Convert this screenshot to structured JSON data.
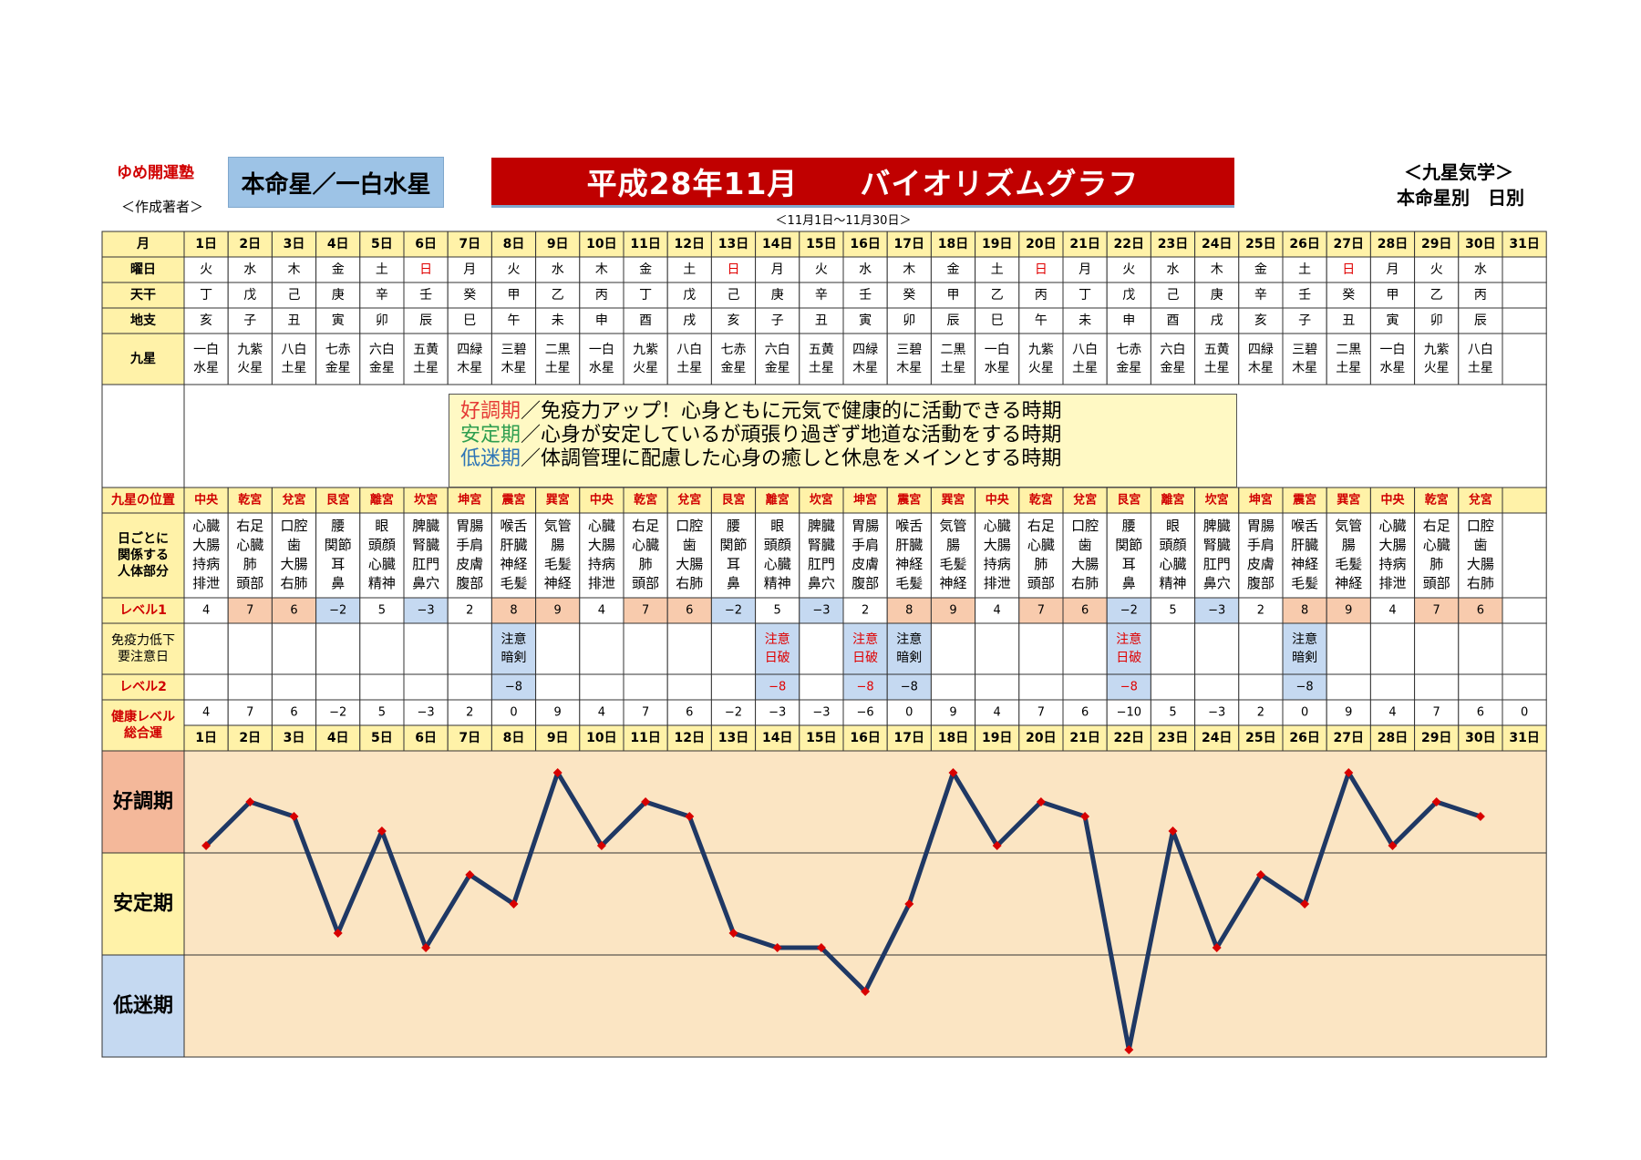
{
  "header": {
    "brand": "ゆめ開運塾",
    "author_note": "＜作成著者＞",
    "honmei": "本命星／一白水星",
    "title": "平成28年11月　　バイオリズムグラフ",
    "subtitle_right1": "＜九星気学＞",
    "subtitle_right2": "本命星別　日別",
    "period": "＜11月1日～11月30日＞"
  },
  "row_labels": {
    "month": "月",
    "weekday": "曜日",
    "stem": "天干",
    "branch": "地支",
    "kyusei": "九星",
    "position": "九星の位置",
    "body": [
      "日ごとに",
      "関係する",
      "人体部分"
    ],
    "level1": "レベル1",
    "caution": [
      "免疫力低下",
      "要注意日"
    ],
    "level2": "レベル2",
    "health": [
      "健康レベル",
      "総合運"
    ]
  },
  "legend": [
    {
      "key": "好調期",
      "text": "／免疫力アップ！心身ともに元気で健康的に活動できる時期"
    },
    {
      "key": "安定期",
      "text": "／心身が安定しているが頑張り過ぎず地道な活動をする時期"
    },
    {
      "key": "低迷期",
      "text": "／体調管理に配慮した心身の癒しと休息をメインとする時期"
    }
  ],
  "bands": [
    "好調期",
    "安定期",
    "低迷期"
  ],
  "days": [
    "1日",
    "2日",
    "3日",
    "4日",
    "5日",
    "6日",
    "7日",
    "8日",
    "9日",
    "10日",
    "11日",
    "12日",
    "13日",
    "14日",
    "15日",
    "16日",
    "17日",
    "18日",
    "19日",
    "20日",
    "21日",
    "22日",
    "23日",
    "24日",
    "25日",
    "26日",
    "27日",
    "28日",
    "29日",
    "30日",
    "31日"
  ],
  "weekdays": [
    "火",
    "水",
    "木",
    "金",
    "土",
    "日",
    "月",
    "火",
    "水",
    "木",
    "金",
    "土",
    "日",
    "月",
    "火",
    "水",
    "木",
    "金",
    "土",
    "日",
    "月",
    "火",
    "水",
    "木",
    "金",
    "土",
    "日",
    "月",
    "火",
    "水",
    ""
  ],
  "stems": [
    "丁",
    "戊",
    "己",
    "庚",
    "辛",
    "壬",
    "癸",
    "甲",
    "乙",
    "丙",
    "丁",
    "戊",
    "己",
    "庚",
    "辛",
    "壬",
    "癸",
    "甲",
    "乙",
    "丙",
    "丁",
    "戊",
    "己",
    "庚",
    "辛",
    "壬",
    "癸",
    "甲",
    "乙",
    "丙",
    ""
  ],
  "branches": [
    "亥",
    "子",
    "丑",
    "寅",
    "卯",
    "辰",
    "巳",
    "午",
    "未",
    "申",
    "酉",
    "戌",
    "亥",
    "子",
    "丑",
    "寅",
    "卯",
    "辰",
    "巳",
    "午",
    "未",
    "申",
    "酉",
    "戌",
    "亥",
    "子",
    "丑",
    "寅",
    "卯",
    "辰",
    ""
  ],
  "kyusei": [
    [
      "一白",
      "水星"
    ],
    [
      "九紫",
      "火星"
    ],
    [
      "八白",
      "土星"
    ],
    [
      "七赤",
      "金星"
    ],
    [
      "六白",
      "金星"
    ],
    [
      "五黄",
      "土星"
    ],
    [
      "四緑",
      "木星"
    ],
    [
      "三碧",
      "木星"
    ],
    [
      "二黒",
      "土星"
    ],
    [
      "一白",
      "水星"
    ],
    [
      "九紫",
      "火星"
    ],
    [
      "八白",
      "土星"
    ],
    [
      "七赤",
      "金星"
    ],
    [
      "六白",
      "金星"
    ],
    [
      "五黄",
      "土星"
    ],
    [
      "四緑",
      "木星"
    ],
    [
      "三碧",
      "木星"
    ],
    [
      "二黒",
      "土星"
    ],
    [
      "一白",
      "水星"
    ],
    [
      "九紫",
      "火星"
    ],
    [
      "八白",
      "土星"
    ],
    [
      "七赤",
      "金星"
    ],
    [
      "六白",
      "金星"
    ],
    [
      "五黄",
      "土星"
    ],
    [
      "四緑",
      "木星"
    ],
    [
      "三碧",
      "木星"
    ],
    [
      "二黒",
      "土星"
    ],
    [
      "一白",
      "水星"
    ],
    [
      "九紫",
      "火星"
    ],
    [
      "八白",
      "土星"
    ],
    [
      "",
      ""
    ]
  ],
  "positions": [
    "中央",
    "乾宮",
    "兌宮",
    "艮宮",
    "離宮",
    "坎宮",
    "坤宮",
    "震宮",
    "巽宮",
    "中央",
    "乾宮",
    "兌宮",
    "艮宮",
    "離宮",
    "坎宮",
    "坤宮",
    "震宮",
    "巽宮",
    "中央",
    "乾宮",
    "兌宮",
    "艮宮",
    "離宮",
    "坎宮",
    "坤宮",
    "震宮",
    "巽宮",
    "中央",
    "乾宮",
    "兌宮",
    ""
  ],
  "body_parts": [
    [
      "心臓",
      "大腸",
      "持病",
      "排泄"
    ],
    [
      "右足",
      "心臓",
      "肺",
      "頭部"
    ],
    [
      "口腔",
      "歯",
      "大腸",
      "右肺"
    ],
    [
      "腰",
      "関節",
      "耳",
      "鼻"
    ],
    [
      "眼",
      "頭顔",
      "心臓",
      "精神"
    ],
    [
      "脾臓",
      "腎臓",
      "肛門",
      "鼻穴"
    ],
    [
      "胃腸",
      "手肩",
      "皮膚",
      "腹部"
    ],
    [
      "喉舌",
      "肝臓",
      "神経",
      "毛髪"
    ],
    [
      "気管",
      "腸",
      "毛髪",
      "神経"
    ],
    [
      "心臓",
      "大腸",
      "持病",
      "排泄"
    ],
    [
      "右足",
      "心臓",
      "肺",
      "頭部"
    ],
    [
      "口腔",
      "歯",
      "大腸",
      "右肺"
    ],
    [
      "腰",
      "関節",
      "耳",
      "鼻"
    ],
    [
      "眼",
      "頭顔",
      "心臓",
      "精神"
    ],
    [
      "脾臓",
      "腎臓",
      "肛門",
      "鼻穴"
    ],
    [
      "胃腸",
      "手肩",
      "皮膚",
      "腹部"
    ],
    [
      "喉舌",
      "肝臓",
      "神経",
      "毛髪"
    ],
    [
      "気管",
      "腸",
      "毛髪",
      "神経"
    ],
    [
      "心臓",
      "大腸",
      "持病",
      "排泄"
    ],
    [
      "右足",
      "心臓",
      "肺",
      "頭部"
    ],
    [
      "口腔",
      "歯",
      "大腸",
      "右肺"
    ],
    [
      "腰",
      "関節",
      "耳",
      "鼻"
    ],
    [
      "眼",
      "頭顔",
      "心臓",
      "精神"
    ],
    [
      "脾臓",
      "腎臓",
      "肛門",
      "鼻穴"
    ],
    [
      "胃腸",
      "手肩",
      "皮膚",
      "腹部"
    ],
    [
      "喉舌",
      "肝臓",
      "神経",
      "毛髪"
    ],
    [
      "気管",
      "腸",
      "毛髪",
      "神経"
    ],
    [
      "心臓",
      "大腸",
      "持病",
      "排泄"
    ],
    [
      "右足",
      "心臓",
      "肺",
      "頭部"
    ],
    [
      "口腔",
      "歯",
      "大腸",
      "右肺"
    ],
    [
      "",
      "",
      "",
      ""
    ]
  ],
  "level1": [
    "4",
    "7",
    "6",
    "−2",
    "5",
    "−3",
    "2",
    "8",
    "9",
    "4",
    "7",
    "6",
    "−2",
    "5",
    "−3",
    "2",
    "8",
    "9",
    "4",
    "7",
    "6",
    "−2",
    "5",
    "−3",
    "2",
    "8",
    "9",
    "4",
    "7",
    "6",
    ""
  ],
  "caution": [
    [
      "",
      ""
    ],
    [
      "",
      ""
    ],
    [
      "",
      ""
    ],
    [
      "",
      ""
    ],
    [
      "",
      ""
    ],
    [
      "",
      ""
    ],
    [
      "",
      ""
    ],
    [
      "注意",
      "暗剣"
    ],
    [
      "",
      ""
    ],
    [
      "",
      ""
    ],
    [
      "",
      ""
    ],
    [
      "",
      ""
    ],
    [
      "",
      ""
    ],
    [
      "注意",
      "日破"
    ],
    [
      "",
      ""
    ],
    [
      "注意",
      "日破"
    ],
    [
      "注意",
      "暗剣"
    ],
    [
      "",
      ""
    ],
    [
      "",
      ""
    ],
    [
      "",
      ""
    ],
    [
      "",
      ""
    ],
    [
      "注意",
      "日破"
    ],
    [
      "",
      ""
    ],
    [
      "",
      ""
    ],
    [
      "",
      ""
    ],
    [
      "注意",
      "暗剣"
    ],
    [
      "",
      ""
    ],
    [
      "",
      ""
    ],
    [
      "",
      ""
    ],
    [
      "",
      ""
    ],
    [
      "",
      ""
    ]
  ],
  "level2": [
    "",
    "",
    "",
    "",
    "",
    "",
    "",
    "−8",
    "",
    "",
    "",
    "",
    "",
    "−8",
    "",
    "−8",
    "−8",
    "",
    "",
    "",
    "",
    "−8",
    "",
    "",
    "",
    "−8",
    "",
    "",
    "",
    "",
    ""
  ],
  "health": [
    "4",
    "7",
    "6",
    "−2",
    "5",
    "−3",
    "2",
    "0",
    "9",
    "4",
    "7",
    "6",
    "−2",
    "−3",
    "−3",
    "−6",
    "0",
    "9",
    "4",
    "7",
    "6",
    "−10",
    "5",
    "−3",
    "2",
    "0",
    "9",
    "4",
    "7",
    "6",
    "0"
  ],
  "colors": {
    "header_yellow": "#fff2a8",
    "good_pink": "#f8cbad",
    "low_blue": "#c5d9f1",
    "red_text": "#e00000",
    "graph_bg": "#fbe5c3",
    "line": "#1f3864",
    "marker": "#d80000",
    "band_good": "#f4b89a",
    "band_stable": "#fff2a8",
    "band_low": "#c5d9f1"
  },
  "chart_data": {
    "type": "line",
    "x": [
      "1日",
      "2日",
      "3日",
      "4日",
      "5日",
      "6日",
      "7日",
      "8日",
      "9日",
      "10日",
      "11日",
      "12日",
      "13日",
      "14日",
      "15日",
      "16日",
      "17日",
      "18日",
      "19日",
      "20日",
      "21日",
      "22日",
      "23日",
      "24日",
      "25日",
      "26日",
      "27日",
      "28日",
      "29日",
      "30日"
    ],
    "values": [
      4,
      7,
      6,
      -2,
      5,
      -3,
      2,
      0,
      9,
      4,
      7,
      6,
      -2,
      -3,
      -3,
      -6,
      0,
      9,
      4,
      7,
      6,
      -10,
      5,
      -3,
      2,
      0,
      9,
      4,
      7,
      6
    ],
    "ylim": [
      -10,
      10
    ],
    "bands": [
      "好調期",
      "安定期",
      "低迷期"
    ]
  }
}
